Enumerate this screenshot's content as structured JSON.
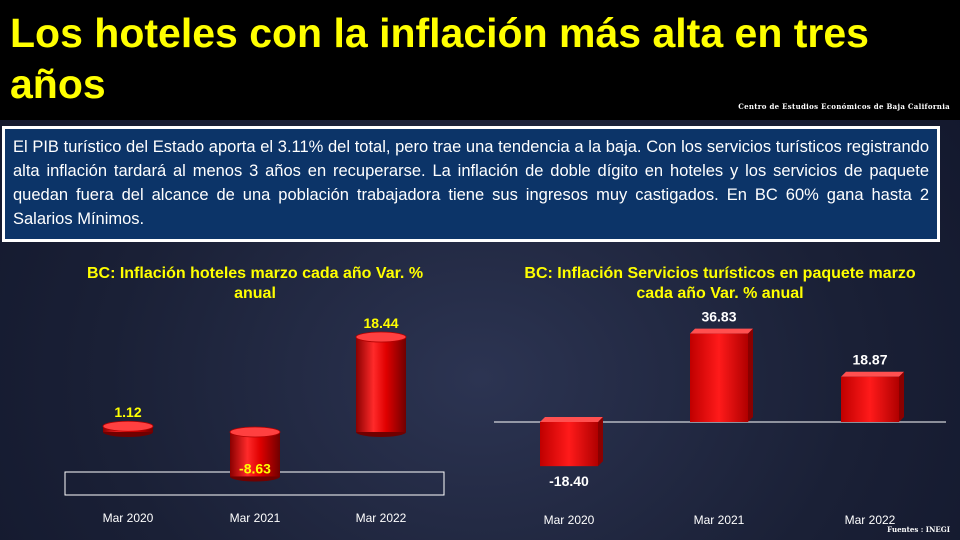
{
  "header": {
    "title": "Los hoteles con la inflación más alta en tres años",
    "credit": "Centro de Estudios Económicos de Baja California"
  },
  "summary": "El PIB turístico del Estado aporta el 3.11% del total, pero trae una tendencia a la baja. Con los servicios turísticos registrando alta inflación tardará al menos 3 años en recuperarse. La inflación de doble dígito en hoteles y los servicios de paquete quedan fuera del alcance de una población trabajadora  tiene sus ingresos muy castigados. En BC 60% gana hasta 2 Salarios Mínimos.",
  "source": "Fuentes : INEGI",
  "colors": {
    "title": "#ffff00",
    "bar": "#e00000",
    "panel": "#0c3468"
  },
  "chart_data": [
    {
      "type": "bar",
      "title": "BC: Inflación hoteles marzo cada año Var. % anual",
      "categories": [
        "Mar 2020",
        "Mar 2021",
        "Mar 2022"
      ],
      "values": [
        1.12,
        -8.63,
        18.44
      ],
      "value_labels": [
        "1.12",
        "-8.63",
        "18.44"
      ],
      "style": "3d-cylinder",
      "grid": false,
      "legend": "none"
    },
    {
      "type": "bar",
      "title": "BC: Inflación Servicios turísticos en paquete marzo cada año Var. % anual",
      "categories": [
        "Mar 2020",
        "Mar 2021",
        "Mar 2022"
      ],
      "values": [
        -18.4,
        36.83,
        18.87
      ],
      "value_labels": [
        "-18.40",
        "36.83",
        "18.87"
      ],
      "style": "3d-box",
      "grid": false,
      "legend": "none"
    }
  ]
}
